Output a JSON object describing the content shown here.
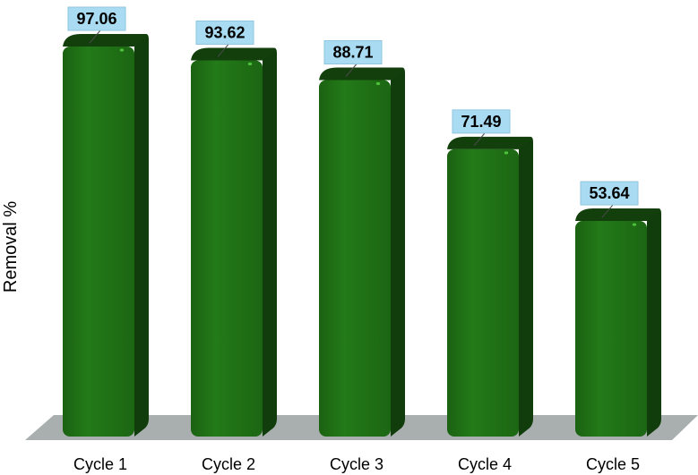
{
  "chart_data": {
    "type": "bar",
    "categories": [
      "Cycle 1",
      "Cycle 2",
      "Cycle 3",
      "Cycle 4",
      "Cycle 5"
    ],
    "values": [
      97.06,
      93.62,
      88.71,
      71.49,
      53.64
    ],
    "value_labels": [
      "97.06",
      "93.62",
      "88.71",
      "71.49",
      "53.64"
    ],
    "title": "",
    "xlabel": "",
    "ylabel": "Removal %",
    "ylim": [
      0,
      100
    ],
    "grid": false,
    "legend": "none",
    "style": "3d-cylinder-bars",
    "colors": {
      "bar_front": "#207016",
      "bar_side": "#103d0b",
      "bar_top": "#123f0c",
      "floor": "#a9afae",
      "label_box": "#a9dcf2",
      "label_border": "#8fc6df"
    }
  }
}
